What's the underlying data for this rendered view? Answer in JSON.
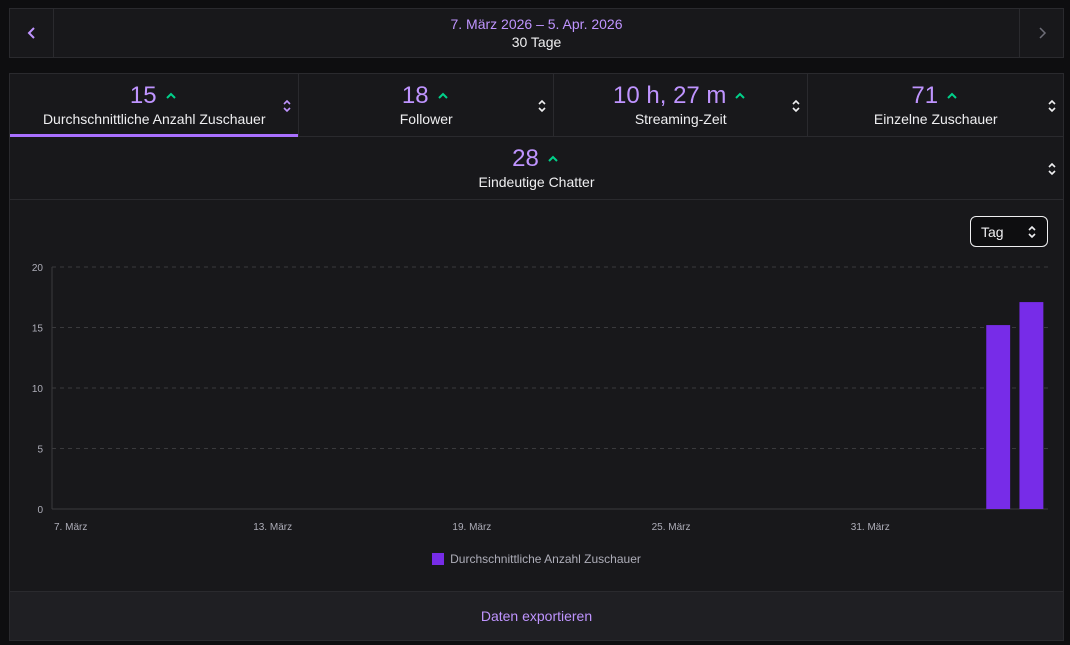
{
  "date_nav": {
    "range": "7. März 2026 – 5. Apr. 2026",
    "days": "30 Tage",
    "prev_icon": "chevron-left-icon",
    "next_icon": "chevron-right-icon"
  },
  "stats": [
    {
      "value": "15",
      "label": "Durchschnittliche Anzahl Zuschauer",
      "trend": "up",
      "active": true
    },
    {
      "value": "18",
      "label": "Follower",
      "trend": "up",
      "active": false
    },
    {
      "value": "10 h, 27 m",
      "label": "Streaming-Zeit",
      "trend": "up",
      "active": false
    },
    {
      "value": "71",
      "label": "Einzelne Zuschauer",
      "trend": "up",
      "active": false
    },
    {
      "value": "28",
      "label": "Eindeutige Chatter",
      "trend": "up",
      "active": false
    }
  ],
  "granularity": {
    "selected": "Tag"
  },
  "chart_data": {
    "type": "bar",
    "x_ticks": [
      "7. März",
      "13. März",
      "19. März",
      "25. März",
      "31. März"
    ],
    "y_ticks": [
      "0",
      "5",
      "10",
      "15",
      "20"
    ],
    "ylim": [
      0,
      20
    ],
    "days_total": 30,
    "series": [
      {
        "name": "Durchschnittliche Anzahl Zuschauer",
        "color": "#772ce8",
        "points": [
          {
            "day_index": 28,
            "value": 15.2
          },
          {
            "day_index": 29,
            "value": 17.1
          }
        ]
      }
    ],
    "grid": true,
    "legend": "bottom-center"
  },
  "export": {
    "label": "Daten exportieren"
  },
  "colors": {
    "accent": "#bf94ff",
    "bar": "#772ce8",
    "trend_up": "#00d18a"
  }
}
